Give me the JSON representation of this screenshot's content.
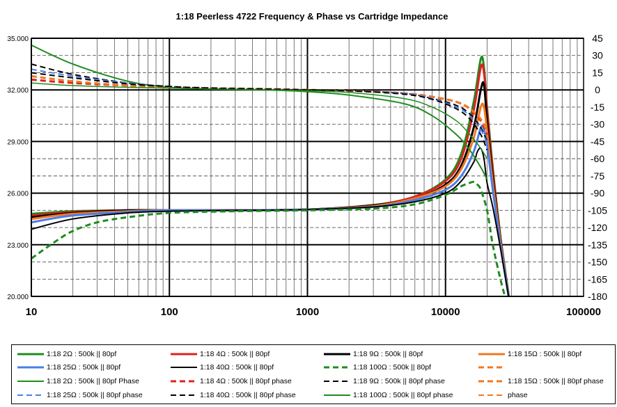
{
  "chart_data": {
    "type": "line",
    "title": "1:18 Peerless 4722  Frequency & Phase vs Cartridge Impedance",
    "x_scale": "log",
    "xlim": [
      10,
      100000
    ],
    "x_ticks": [
      "10",
      "100",
      "1000",
      "10000",
      "100000"
    ],
    "ylim_left": [
      20,
      35
    ],
    "y_left_ticks": [
      "20.000",
      "23.000",
      "26.000",
      "29.000",
      "32.000",
      "35.000"
    ],
    "ylim_right": [
      -180,
      45
    ],
    "y_right_ticks": [
      "45",
      "30",
      "15",
      "0",
      "-15",
      "-30",
      "-45",
      "-60",
      "-75",
      "-90",
      "-105",
      "-120",
      "-135",
      "-150",
      "-165",
      "-180"
    ],
    "grid": true,
    "legend_placement": "bottom",
    "series": [
      {
        "name": "1:18 2Ω : 500k || 80pf",
        "color": "#1e8c1e",
        "dash": "solid",
        "width": 3,
        "axis": "left",
        "x": [
          10,
          20,
          50,
          100,
          300,
          1000,
          3000,
          6000,
          10000,
          13000,
          16000,
          18000,
          19000,
          20000,
          22000,
          25000,
          30000
        ],
        "y": [
          24.8,
          24.95,
          25.0,
          25.0,
          25.0,
          25.05,
          25.3,
          25.8,
          26.8,
          28.3,
          31.3,
          33.8,
          33.3,
          31.0,
          27.5,
          23.5,
          19.0
        ]
      },
      {
        "name": "1:18 4Ω : 500k || 80pf",
        "color": "#e02020",
        "dash": "solid",
        "width": 3,
        "axis": "left",
        "x": [
          10,
          20,
          50,
          100,
          300,
          1000,
          3000,
          6000,
          10000,
          13000,
          16000,
          18000,
          19000,
          20000,
          22000,
          25000,
          30000
        ],
        "y": [
          24.7,
          24.9,
          25.0,
          25.0,
          25.0,
          25.05,
          25.3,
          25.8,
          26.7,
          28.0,
          30.8,
          33.3,
          33.0,
          30.8,
          27.3,
          23.4,
          19.0
        ]
      },
      {
        "name": "1:18 9Ω : 500k || 80pf",
        "color": "#000000",
        "dash": "solid",
        "width": 3,
        "axis": "left",
        "x": [
          10,
          20,
          50,
          100,
          300,
          1000,
          3000,
          6000,
          10000,
          13000,
          16000,
          18000,
          19000,
          20000,
          22000,
          25000,
          30000
        ],
        "y": [
          24.6,
          24.85,
          25.0,
          25.0,
          25.0,
          25.05,
          25.3,
          25.7,
          26.5,
          27.6,
          29.8,
          32.0,
          32.3,
          30.2,
          26.9,
          23.3,
          19.0
        ]
      },
      {
        "name": "1:18 15Ω : 500k || 80pf",
        "color": "#f07820",
        "dash": "solid",
        "width": 3,
        "axis": "left",
        "x": [
          10,
          20,
          50,
          100,
          300,
          1000,
          3000,
          6000,
          10000,
          13000,
          16000,
          18000,
          19000,
          20000,
          22000,
          25000,
          30000
        ],
        "y": [
          24.5,
          24.8,
          24.95,
          25.0,
          25.0,
          25.05,
          25.25,
          25.7,
          26.4,
          27.4,
          29.2,
          31.0,
          31.0,
          29.6,
          26.6,
          23.2,
          19.0
        ]
      },
      {
        "name": "1:18 25Ω : 500k || 80pf",
        "color": "#4a7ee8",
        "dash": "solid",
        "width": 3,
        "axis": "left",
        "x": [
          10,
          20,
          50,
          100,
          300,
          1000,
          3000,
          6000,
          10000,
          13000,
          16000,
          18000,
          19000,
          20000,
          22000,
          25000,
          30000
        ],
        "y": [
          24.3,
          24.7,
          24.9,
          25.0,
          25.0,
          25.05,
          25.2,
          25.6,
          26.2,
          27.0,
          28.4,
          29.8,
          29.7,
          28.8,
          26.2,
          23.0,
          19.0
        ]
      },
      {
        "name": "1:18 40Ω : 500k || 80pf",
        "color": "#000000",
        "dash": "solid",
        "width": 2,
        "axis": "left",
        "x": [
          10,
          20,
          50,
          100,
          300,
          1000,
          3000,
          6000,
          10000,
          13000,
          16000,
          17000,
          18000,
          19000,
          20000,
          22000,
          25000,
          30000
        ],
        "y": [
          23.9,
          24.5,
          24.85,
          24.95,
          25.0,
          25.05,
          25.2,
          25.5,
          26.0,
          26.7,
          27.8,
          28.4,
          28.6,
          28.0,
          26.6,
          25.2,
          22.8,
          19.0
        ]
      },
      {
        "name": "1:18 100Ω : 500k || 80pf",
        "color": "#1e8c1e",
        "dash": "8,5",
        "width": 3,
        "axis": "left",
        "x": [
          10,
          15,
          20,
          30,
          50,
          100,
          300,
          1000,
          3000,
          6000,
          10000,
          13000,
          15000,
          16000,
          17000,
          18000,
          20000,
          22000,
          25000,
          28000
        ],
        "y": [
          22.2,
          23.2,
          23.8,
          24.3,
          24.6,
          24.85,
          24.95,
          25.0,
          25.1,
          25.35,
          25.9,
          26.4,
          26.6,
          26.65,
          26.5,
          26.2,
          25.0,
          23.0,
          21.0,
          19.5
        ]
      },
      {
        "name": "",
        "color": "#f07820",
        "dash": "8,5",
        "width": 3,
        "axis": "left",
        "x": [],
        "y": []
      },
      {
        "name": "1:18 2Ω : 500k || 80pf Phase",
        "color": "#1e8c1e",
        "dash": "solid",
        "width": 2,
        "axis": "left",
        "x": [
          10,
          20,
          50,
          100,
          200,
          500,
          1000,
          2000,
          5000,
          8000,
          12000,
          15000,
          18000,
          20000
        ],
        "y": [
          34.6,
          33.5,
          32.5,
          32.15,
          32.05,
          32.0,
          31.9,
          31.7,
          31.2,
          30.5,
          29.4,
          28.5,
          27.5,
          26.8
        ]
      },
      {
        "name": "1:18 4Ω : 500k || 80pf phase",
        "color": "#e02020",
        "dash": "8,5",
        "width": 3,
        "axis": "left",
        "x": [
          10,
          20,
          50,
          100,
          200,
          500,
          1000,
          2000,
          5000,
          8000,
          12000,
          15000,
          18000,
          20000
        ],
        "y": [
          32.6,
          32.4,
          32.25,
          32.15,
          32.1,
          32.05,
          32.0,
          31.95,
          31.8,
          31.6,
          31.3,
          30.9,
          30.2,
          29.4
        ]
      },
      {
        "name": "1:18 9Ω : 500k || 80pf phase",
        "color": "#000000",
        "dash": "8,5",
        "width": 2,
        "axis": "left",
        "x": [
          10,
          20,
          50,
          100,
          200,
          500,
          1000,
          2000,
          5000,
          8000,
          12000,
          15000,
          18000,
          20000
        ],
        "y": [
          33.5,
          32.9,
          32.4,
          32.2,
          32.1,
          32.05,
          32.0,
          31.95,
          31.8,
          31.5,
          31.1,
          30.6,
          29.8,
          29.0
        ]
      },
      {
        "name": "1:18 15Ω : 500k || 80pf phase",
        "color": "#f07820",
        "dash": "8,5",
        "width": 3,
        "axis": "left",
        "x": [
          10,
          20,
          50,
          100,
          200,
          500,
          1000,
          2000,
          5000,
          8000,
          12000,
          15000,
          18000,
          20000
        ],
        "y": [
          32.8,
          32.5,
          32.25,
          32.15,
          32.1,
          32.05,
          32.0,
          31.95,
          31.8,
          31.6,
          31.3,
          30.9,
          30.3,
          29.6
        ]
      },
      {
        "name": "1:18 25Ω : 500k || 80pf phase",
        "color": "#4a7ee8",
        "dash": "8,5",
        "width": 2,
        "axis": "left",
        "x": [
          10,
          20,
          50,
          100,
          200,
          500,
          1000,
          2000,
          5000,
          8000,
          12000,
          15000,
          18000,
          20000
        ],
        "y": [
          33.2,
          32.8,
          32.4,
          32.2,
          32.1,
          32.05,
          32.0,
          31.95,
          31.8,
          31.5,
          31.0,
          30.5,
          29.7,
          28.9
        ]
      },
      {
        "name": "1:18 40Ω : 500k || 80pf phase",
        "color": "#000000",
        "dash": "8,5",
        "width": 2,
        "axis": "left",
        "x": [
          10,
          20,
          50,
          100,
          200,
          500,
          1000,
          2000,
          5000,
          8000,
          12000,
          15000,
          18000,
          20000
        ],
        "y": [
          33.0,
          32.7,
          32.35,
          32.2,
          32.1,
          32.05,
          32.0,
          31.95,
          31.75,
          31.45,
          30.9,
          30.3,
          29.4,
          28.5
        ]
      },
      {
        "name": "1:18 100Ω : 500k || 80pf phase",
        "color": "#1e8c1e",
        "dash": "solid",
        "width": 1.5,
        "axis": "left",
        "x": [
          10,
          20,
          50,
          100,
          200,
          500,
          1000,
          2000,
          5000,
          8000,
          12000,
          15000,
          18000,
          20000
        ],
        "y": [
          32.4,
          32.25,
          32.15,
          32.1,
          32.05,
          32.0,
          31.95,
          31.85,
          31.5,
          31.0,
          30.2,
          29.4,
          28.6,
          28.0
        ]
      },
      {
        "name": "phase",
        "color": "#f07820",
        "dash": "8,5",
        "width": 2,
        "axis": "left",
        "x": [],
        "y": []
      }
    ]
  }
}
